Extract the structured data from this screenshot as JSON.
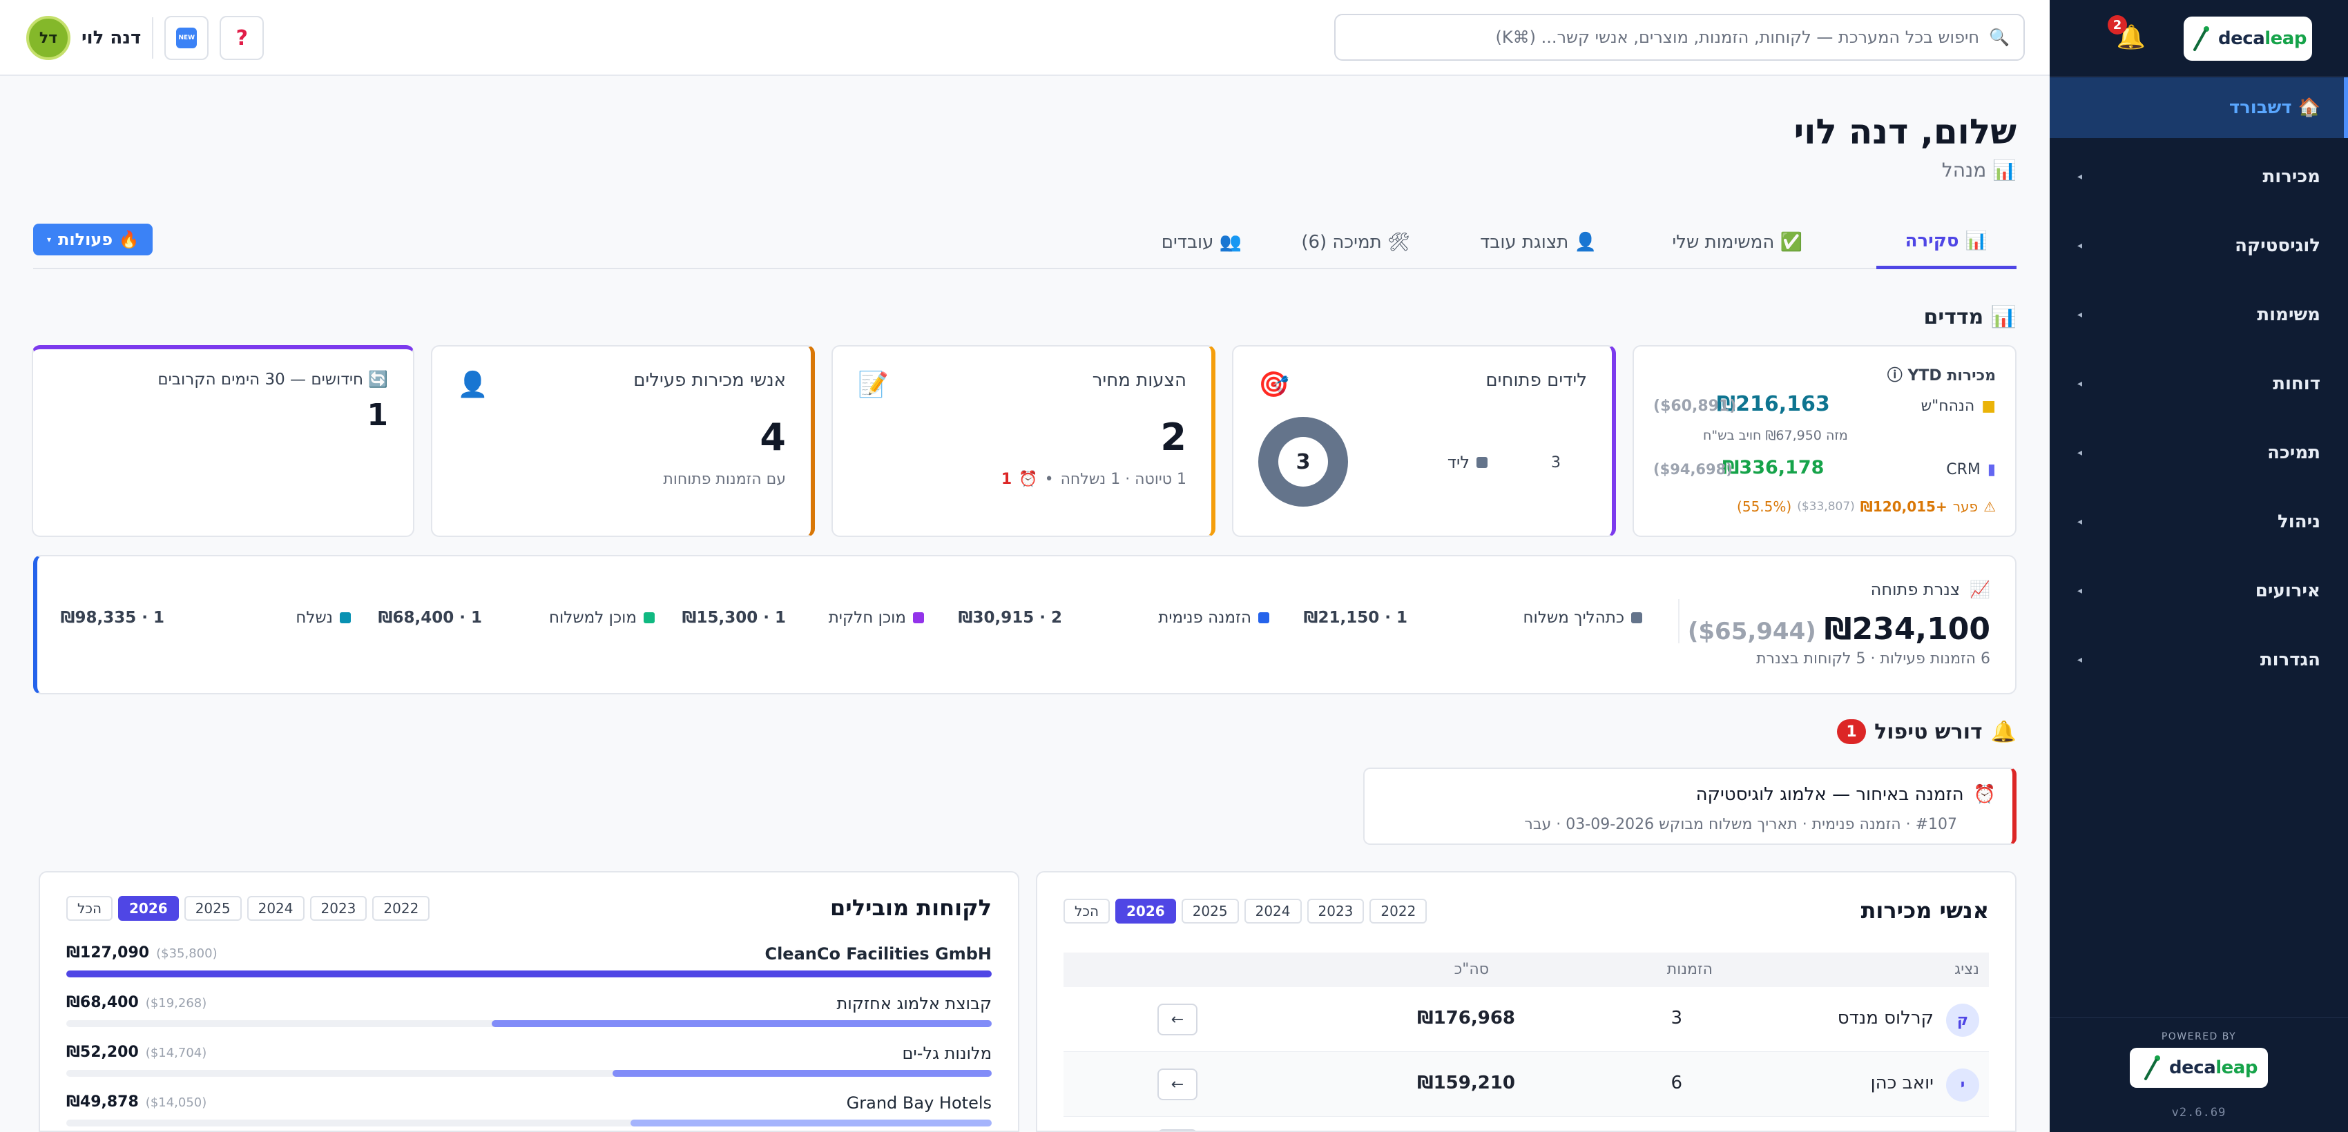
{
  "sidebar": {
    "logo_prefix": "deca",
    "logo_suffix": "leap",
    "notification_count": "2",
    "items": [
      {
        "label": "🏠 דשבורד",
        "active": true
      },
      {
        "label": "מכירות"
      },
      {
        "label": "לוגיסטיקה"
      },
      {
        "label": "משימות"
      },
      {
        "label": "דוחות"
      },
      {
        "label": "תמיכה"
      },
      {
        "label": "ניהול"
      },
      {
        "label": "אירועים"
      },
      {
        "label": "הגדרות"
      }
    ],
    "powered_by": "POWERED BY",
    "version": "v2.6.69"
  },
  "topbar": {
    "search_placeholder": "חיפוש בכל המערכת — לקוחות, הזמנות, מוצרים, אנשי קשר... (⌘K)",
    "new_badge": "NEW",
    "help": "?",
    "user_name": "דנה לוי",
    "user_initials": "דל"
  },
  "header": {
    "greeting": "שלום, דנה לוי",
    "role": "📊 מנהל",
    "actions_label": "🔥 פעולות"
  },
  "tabs": [
    {
      "label": "📊 סקירה",
      "active": true
    },
    {
      "label": "✅ המשימות שלי"
    },
    {
      "label": "👤 תצוגת עובד"
    },
    {
      "label": "🛠 תמיכה (6)"
    },
    {
      "label": "👥 עובדים"
    }
  ],
  "metrics": {
    "title": "📊 מדדים",
    "sales": {
      "title": "מכירות ⓘ YTD",
      "acc_label": "הנהח\"ש",
      "acc_value": "₪216,163",
      "acc_vat": "($60,891)",
      "acc_sub": "מזה ₪67,950 חויב בש\"ח",
      "crm_label": "CRM",
      "crm_value": "₪336,178",
      "crm_vat": "($94,698)",
      "gap_label": "פער",
      "gap_value": "+₪120,015",
      "gap_usd": "($33,807)",
      "gap_pct": "(55.5%)"
    },
    "leads": {
      "title": "לידים פתוחים",
      "legend": "ליד",
      "legend_count": "3",
      "total": "3"
    },
    "quotes": {
      "title": "הצעות מחיר",
      "value": "2",
      "sub": "1 טיוטה · 1 נשלחה",
      "overdue": "1"
    },
    "salespeople": {
      "title": "אנשי מכירות פעילים",
      "value": "4",
      "sub": "עם הזמנות פתוחות"
    },
    "renewals": {
      "title": "🔄 חידושים — 30 הימים הקרובים",
      "value": "1"
    }
  },
  "pipeline": {
    "title": "צנרת פתוחה",
    "total": "₪234,100",
    "total_usd": "($65,944)",
    "sub": "6 הזמנות פעילות · 5 לקוחות בצנרת",
    "stages": [
      {
        "label": "כתהליך משלוח",
        "value": "1 · ₪21,150",
        "color": "#64748b"
      },
      {
        "label": "הזמנה פנימית",
        "value": "2 · ₪30,915",
        "color": "#2563eb"
      },
      {
        "label": "מוכן חלקית",
        "value": "1 · ₪15,300",
        "color": "#9333ea"
      },
      {
        "label": "מוכן למשלוח",
        "value": "1 · ₪68,400",
        "color": "#10b981"
      },
      {
        "label": "נשלח",
        "value": "1 · ₪98,335",
        "color": "#0891b2"
      }
    ]
  },
  "alerts": {
    "title": "דורש טיפול",
    "count": "1",
    "item_title": "הזמנה באיחור — אלמוג לוגיסטיקה",
    "item_sub": "#107 · הזמנה פנימית · תאריך משלוח מבוקש 03-09-2026 · עבר"
  },
  "salespeople_table": {
    "title": "אנשי מכירות",
    "years": [
      "הכל",
      "2026",
      "2025",
      "2024",
      "2023",
      "2022"
    ],
    "active_year": "2026",
    "columns": [
      "נציג",
      "הזמנות",
      "סה\"כ"
    ],
    "rows": [
      {
        "initial": "ק",
        "name": "קרלוס מנדס",
        "orders": "3",
        "total": "₪176,968"
      },
      {
        "initial": "י",
        "name": "יואב כהן",
        "orders": "6",
        "total": "₪159,210"
      }
    ],
    "row_action": "←"
  },
  "top_customers": {
    "title": "לקוחות מובילים",
    "years": [
      "הכל",
      "2026",
      "2025",
      "2024",
      "2023",
      "2022"
    ],
    "active_year": "2026",
    "items": [
      {
        "name": "CleanCo Facilities GmbH",
        "value": "₪127,090",
        "usd": "($35,800)",
        "share": 1.0,
        "color": "#4f46e5"
      },
      {
        "name": "קבוצת אלמוג אחזקות",
        "value": "₪68,400",
        "usd": "($19,268)",
        "share": 0.54,
        "color": "#818cf8"
      },
      {
        "name": "מלונות גל-ים",
        "value": "₪52,200",
        "usd": "($14,704)",
        "share": 0.41,
        "color": "#818cf8"
      },
      {
        "name": "Grand Bay Hotels",
        "value": "₪49,878",
        "usd": "($14,050)",
        "share": 0.39,
        "color": "#a5b4fc"
      }
    ]
  }
}
